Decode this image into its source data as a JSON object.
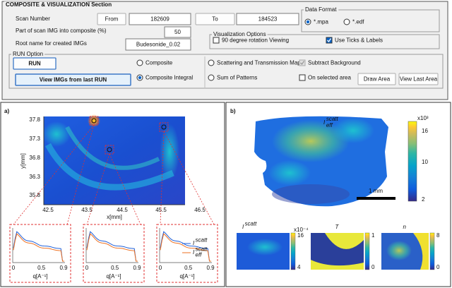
{
  "panel": {
    "title": "COMPOSITE & VISUALIZATION Section",
    "scan_number": {
      "label": "Scan Number",
      "from_button": "From",
      "from_value": "182609",
      "to_button": "To",
      "to_value": "184523"
    },
    "part_label": "Part of scan IMG into composite (%)",
    "part_value": "50",
    "root_label": "Root name for created IMGs",
    "root_value": "Budesonide_0.02",
    "data_format": {
      "title": "Data Format",
      "options": [
        "*.mpa",
        "*.edf"
      ]
    },
    "visualization": {
      "title": "Visualization Options",
      "options": [
        "90 degree rotation Viewing",
        "Use Ticks & Labels"
      ]
    },
    "run": {
      "title": "RUN Option",
      "run_button": "RUN",
      "view_button": "View IMGs from last RUN",
      "modes": [
        "Composite",
        "Composite Integral"
      ],
      "maps": [
        "Scattering and Transmission Maps",
        "Sum of Patterns"
      ],
      "subtract": "Subtract Background",
      "selected": "On selected area",
      "draw_button": "Draw Area",
      "view_area_button": "View Last Area"
    }
  },
  "figure_a": {
    "label": "a)",
    "y_ticks": [
      "37.8",
      "37.3",
      "36.8",
      "36.3",
      "35.8"
    ],
    "y_label": "y[mm]",
    "x_ticks": [
      "42.5",
      "43.5",
      "44.5",
      "45.5",
      "46.5"
    ],
    "x_label": "x[mm]",
    "subplots": [
      {
        "x_ticks": [
          "0",
          "0.5",
          "0.9"
        ],
        "x_label": "q[A⁻¹]"
      },
      {
        "x_ticks": [
          "0",
          "0.5",
          "0.9"
        ],
        "x_label": "q[A⁻¹]"
      },
      {
        "x_ticks": [
          "0",
          "0.5",
          "0.9"
        ],
        "x_label": "q[A⁻¹]"
      }
    ],
    "legend": [
      {
        "symbol": "I",
        "sup": "scatt"
      },
      {
        "symbol": "I",
        "sub": "eff",
        "sup": "scatt"
      }
    ]
  },
  "figure_b": {
    "label": "b)",
    "map_title": {
      "symbol": "I",
      "sub": "eff",
      "sup": "scatt"
    },
    "colorbar": {
      "exponent": "x10³",
      "ticks": [
        "16",
        "10",
        "2"
      ]
    },
    "scale_bar": "1 mm",
    "small_maps": [
      {
        "title": {
          "symbol": "I",
          "sup": "scatt"
        },
        "exponent": "x10⁻⁴",
        "ticks": [
          "16",
          "4"
        ]
      },
      {
        "title": {
          "symbol": "T"
        },
        "ticks": [
          "1",
          "0"
        ]
      },
      {
        "title": {
          "symbol": "n"
        },
        "ticks": [
          "8",
          "0"
        ]
      }
    ]
  }
}
